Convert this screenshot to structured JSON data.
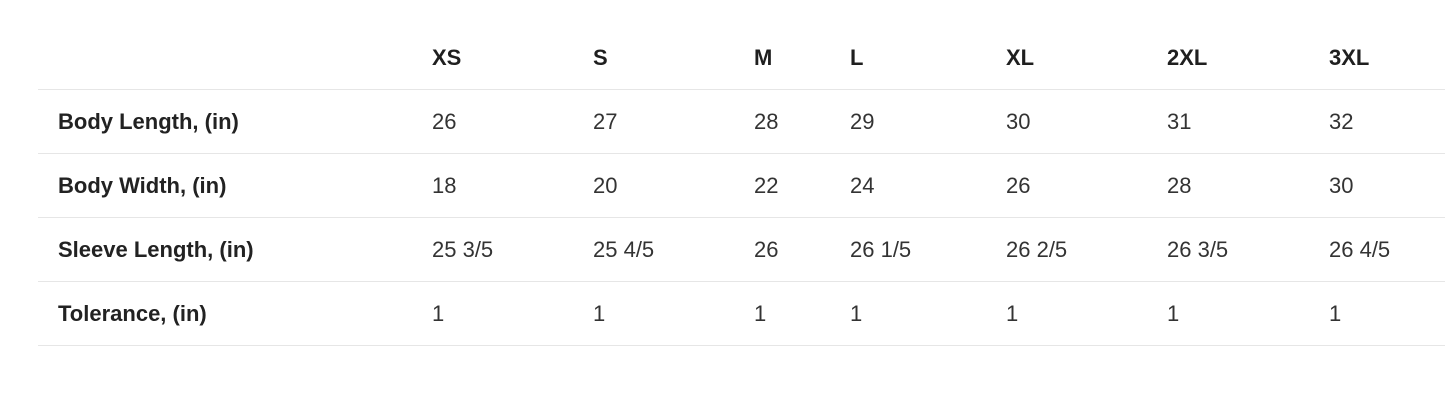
{
  "size_chart": {
    "columns": [
      "XS",
      "S",
      "M",
      "L",
      "XL",
      "2XL",
      "3XL"
    ],
    "rows": [
      {
        "label": "Body Length, (in)",
        "values": [
          "26",
          "27",
          "28",
          "29",
          "30",
          "31",
          "32"
        ]
      },
      {
        "label": "Body Width, (in)",
        "values": [
          "18",
          "20",
          "22",
          "24",
          "26",
          "28",
          "30"
        ]
      },
      {
        "label": "Sleeve Length, (in)",
        "values": [
          "25 3/5",
          "25 4/5",
          "26",
          "26 1/5",
          "26 2/5",
          "26 3/5",
          "26 4/5"
        ]
      },
      {
        "label": "Tolerance, (in)",
        "values": [
          "1",
          "1",
          "1",
          "1",
          "1",
          "1",
          "1"
        ]
      }
    ]
  }
}
